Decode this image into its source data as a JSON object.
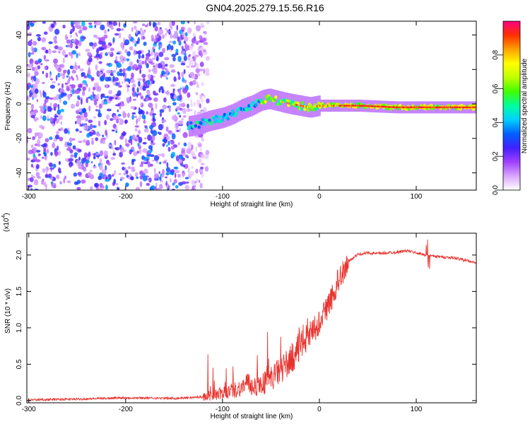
{
  "title": "GN04.2025.279.15.56.R16",
  "chart_data": [
    {
      "type": "heatmap",
      "xlabel": "Height of straight line (km)",
      "ylabel": "Frequency (Hz)",
      "xlim": [
        -302,
        162
      ],
      "ylim": [
        -50,
        48
      ],
      "xticks": [
        -300,
        -200,
        -100,
        0,
        100
      ],
      "xtick_labels": [
        "-300",
        "-200",
        "-100",
        "0",
        "100"
      ],
      "yticks": [
        -40,
        -20,
        0,
        20,
        40
      ],
      "ytick_labels": [
        "-40",
        "-20",
        "0",
        "20",
        "40"
      ],
      "colorbar": {
        "label": "Normalized spectral amplitude",
        "range": [
          0,
          1
        ],
        "ticks": [
          0,
          0.2,
          0.4,
          0.6,
          0.8
        ],
        "tick_labels": [
          "0.0",
          "0.2",
          "0.4",
          "0.6",
          "0.8"
        ],
        "colors": [
          "#ffffff",
          "#d9a6ff",
          "#a040ff",
          "#4020ff",
          "#0060ff",
          "#00d0ff",
          "#00ffa0",
          "#40ff00",
          "#c0ff00",
          "#ffff00",
          "#ffa000",
          "#ff3000",
          "#ff0080"
        ]
      },
      "ridge": {
        "x": [
          -135,
          -125,
          -115,
          -100,
          -90,
          -80,
          -70,
          -60,
          -52,
          -45,
          -38,
          -30,
          -20,
          -10,
          0,
          20,
          40,
          60,
          80,
          100,
          120,
          140,
          162
        ],
        "y": [
          -13,
          -12,
          -10,
          -8,
          -6,
          -3,
          -1,
          2,
          3,
          2,
          1,
          0,
          -1,
          -2,
          -1,
          -1,
          -1,
          -1.5,
          -2,
          -2,
          -2,
          -2,
          -2
        ]
      },
      "noise_region_x": [
        -302,
        -135
      ],
      "grid": false,
      "legend": "colorbar-right"
    },
    {
      "type": "line",
      "xlabel": "Height of straight line (km)",
      "ylabel": "SNR (10 * v/v)",
      "y_multiplier": "(x10",
      "y_multiplier_exp": "4",
      "y_multiplier_close": ")",
      "xlim": [
        -302,
        162
      ],
      "ylim": [
        -0.03,
        2.3
      ],
      "xticks": [
        -300,
        -200,
        -100,
        0,
        100
      ],
      "xtick_labels": [
        "-300",
        "-200",
        "-100",
        "0",
        "100"
      ],
      "yticks": [
        0,
        0.5,
        1.0,
        1.5,
        2.0
      ],
      "ytick_labels": [
        "0.0",
        "0.5",
        "1.0",
        "1.5",
        "2.0"
      ],
      "color": "#e8332e",
      "series": [
        {
          "x": [
            -302,
            -250,
            -200,
            -150,
            -120,
            -110,
            -100,
            -90,
            -80,
            -75,
            -70,
            -60,
            -50,
            -40,
            -30,
            -20,
            -10,
            0,
            10,
            20,
            30,
            40,
            50,
            60,
            70,
            80,
            90,
            100,
            110,
            115,
            120,
            130,
            140,
            150,
            162
          ],
          "values": [
            0.01,
            0.02,
            0.04,
            0.03,
            0.05,
            0.07,
            0.1,
            0.14,
            0.18,
            0.25,
            0.2,
            0.22,
            0.3,
            0.42,
            0.55,
            0.75,
            0.95,
            1.1,
            1.35,
            1.7,
            1.92,
            2.01,
            2.03,
            2.02,
            2.03,
            2.04,
            2.06,
            2.03,
            2.0,
            1.99,
            1.98,
            1.97,
            1.96,
            1.93,
            1.89
          ]
        }
      ],
      "grid": false
    }
  ]
}
